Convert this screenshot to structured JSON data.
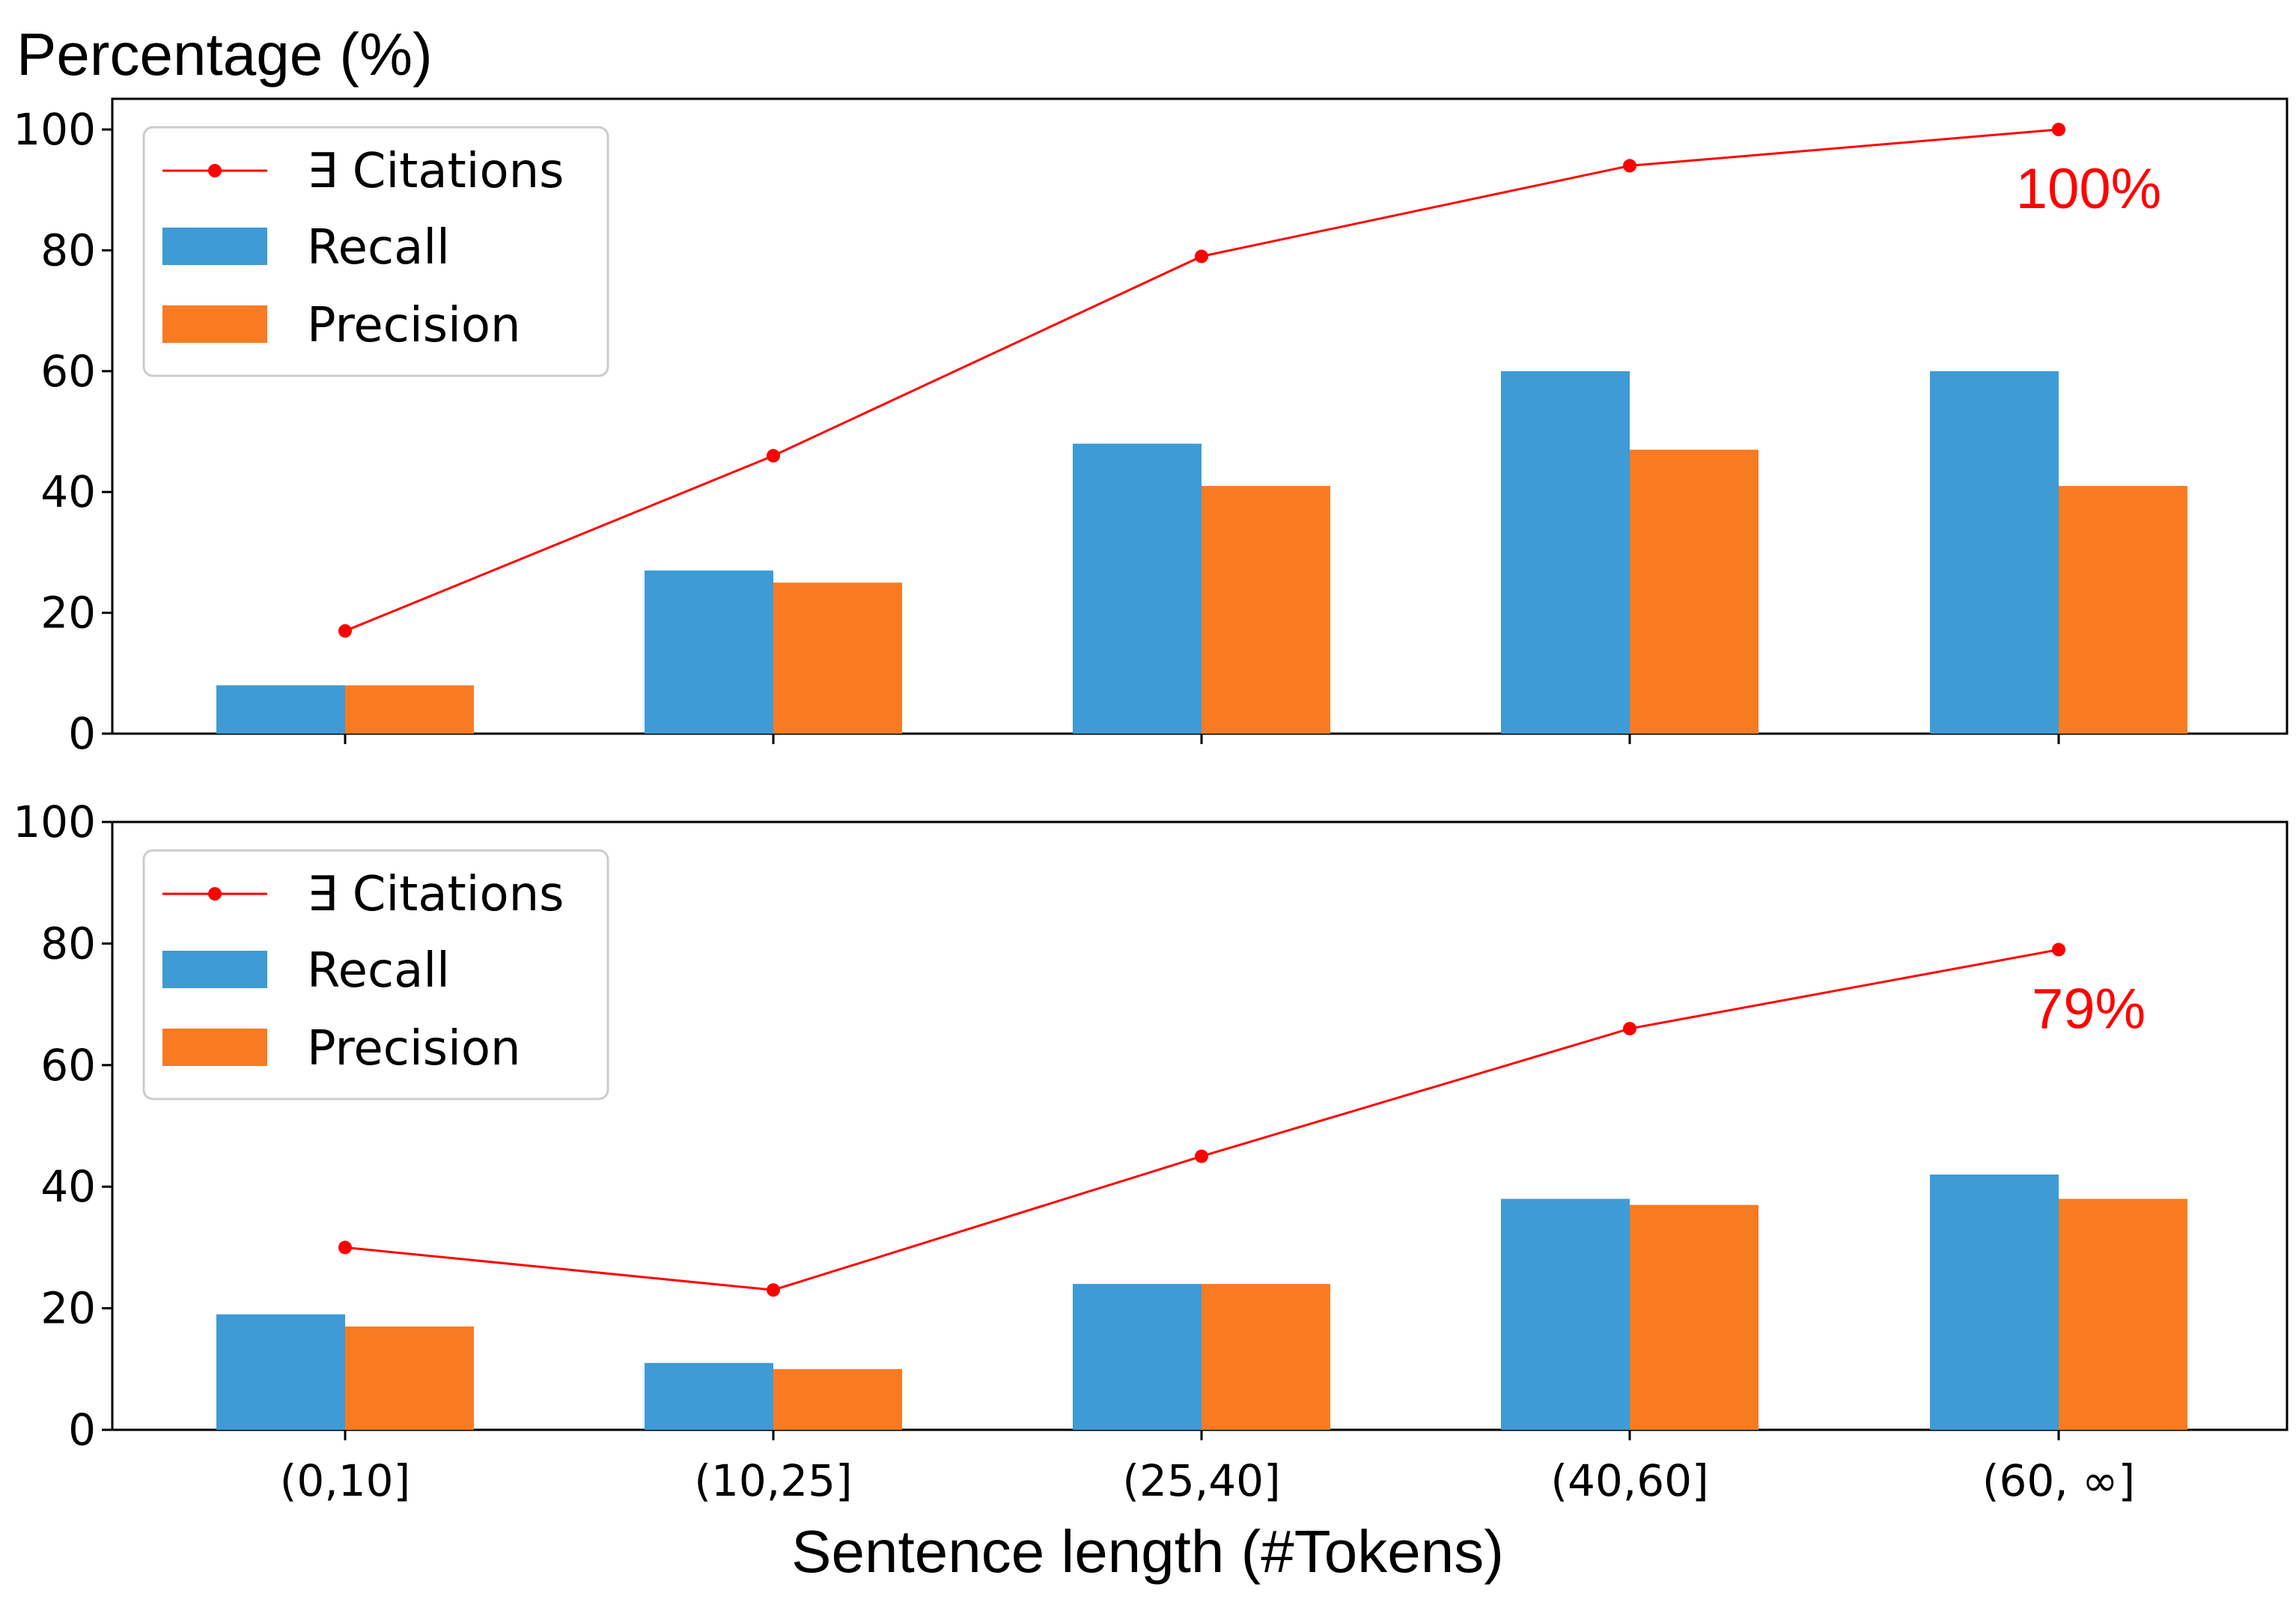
{
  "chart_data": [
    {
      "type": "bar",
      "panel": "top",
      "ylabel": "Percentage (%)",
      "xlabel": "",
      "ylim": [
        0,
        105
      ],
      "yticks": [
        "0",
        "20",
        "40",
        "60",
        "80",
        "100"
      ],
      "categories": [
        "(0,10]",
        "(10,25]",
        "(25,40]",
        "(40,60]",
        "(60, ∞]"
      ],
      "series": [
        {
          "name": "∃ Citations",
          "kind": "line",
          "color": "#ff0000",
          "values": [
            17,
            46,
            79,
            94,
            100
          ]
        },
        {
          "name": "Recall",
          "kind": "bar",
          "color": "#3e9bd5",
          "values": [
            8,
            27,
            48,
            60,
            60
          ]
        },
        {
          "name": "Precision",
          "kind": "bar",
          "color": "#f87b22",
          "values": [
            8,
            25,
            41,
            47,
            41
          ]
        }
      ],
      "annotation": "100%",
      "legend_position": "upper-left"
    },
    {
      "type": "bar",
      "panel": "bottom",
      "ylabel": "",
      "xlabel": "Sentence length (#Tokens)",
      "ylim": [
        0,
        100
      ],
      "yticks": [
        "0",
        "20",
        "40",
        "60",
        "80",
        "100"
      ],
      "categories": [
        "(0,10]",
        "(10,25]",
        "(25,40]",
        "(40,60]",
        "(60, ∞]"
      ],
      "series": [
        {
          "name": "∃ Citations",
          "kind": "line",
          "color": "#ff0000",
          "values": [
            30,
            23,
            45,
            66,
            79
          ]
        },
        {
          "name": "Recall",
          "kind": "bar",
          "color": "#3e9bd5",
          "values": [
            19,
            11,
            24,
            38,
            42
          ]
        },
        {
          "name": "Precision",
          "kind": "bar",
          "color": "#f87b22",
          "values": [
            17,
            10,
            24,
            37,
            38
          ]
        }
      ],
      "annotation": "79%",
      "legend_position": "upper-left"
    }
  ]
}
